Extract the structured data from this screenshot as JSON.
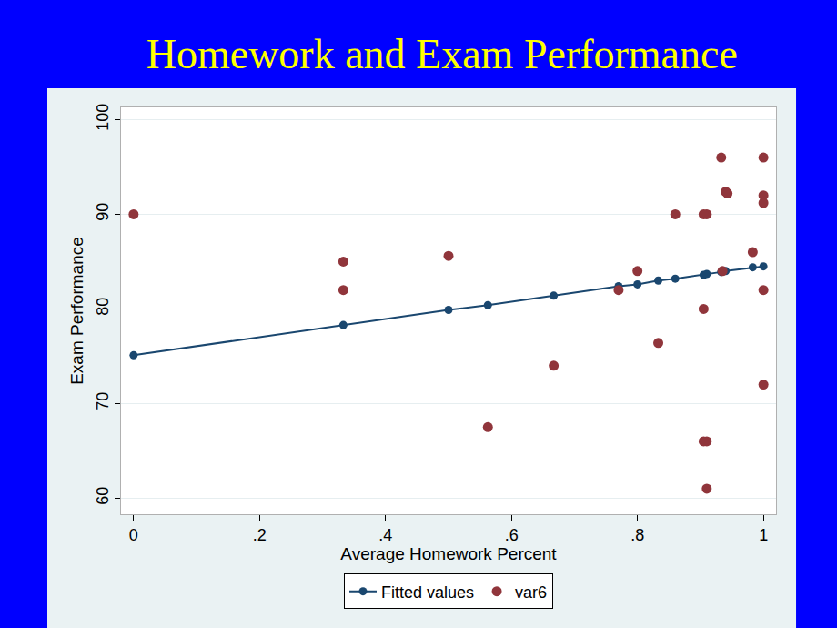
{
  "chart_data": {
    "type": "scatter",
    "title": "Homework and Exam Performance",
    "x_label": "Average Homework Percent",
    "y_label": "Exam Performance",
    "xlim": [
      -0.02,
      1.02
    ],
    "ylim": [
      58.3,
      101.3
    ],
    "xticks": [
      0,
      {
        "value": 0.2,
        "label": ".2"
      },
      {
        "value": 0.4,
        "label": ".4"
      },
      {
        "value": 0.6,
        "label": ".6"
      },
      {
        "value": 0.8,
        "label": ".8"
      },
      1
    ],
    "yticks": [
      60,
      70,
      80,
      90,
      100
    ],
    "grid": true,
    "legend": "bottom",
    "series": [
      {
        "name": "Fitted values",
        "type": "line",
        "marker": "circle",
        "color": "#1a476f",
        "x": [
          0,
          0.333,
          0.5,
          0.5625,
          0.667,
          0.77,
          0.8,
          0.833,
          0.86,
          0.905,
          0.91,
          0.933,
          0.94,
          0.983,
          1
        ],
        "values": [
          75.1,
          78.3,
          79.9,
          80.4,
          81.4,
          82.4,
          82.6,
          83.0,
          83.2,
          83.6,
          83.7,
          83.9,
          84.0,
          84.4,
          84.5
        ]
      },
      {
        "name": "var6",
        "type": "scatter",
        "marker": "circle",
        "color": "#90353b",
        "x": [
          0,
          0.333,
          0.333,
          0.5,
          0.5625,
          0.667,
          0.77,
          0.8,
          0.833,
          0.86,
          0.905,
          0.91,
          0.905,
          0.91,
          0.905,
          0.91,
          0.933,
          0.94,
          0.943,
          0.935,
          0.983,
          1,
          1,
          1,
          1,
          1
        ],
        "values": [
          90,
          85,
          82,
          85.6,
          67.5,
          74,
          82,
          84,
          76.4,
          90,
          80,
          90,
          90,
          66,
          66,
          61,
          96,
          92.4,
          92.2,
          84,
          86,
          96,
          92,
          91.2,
          82,
          72
        ]
      }
    ]
  }
}
